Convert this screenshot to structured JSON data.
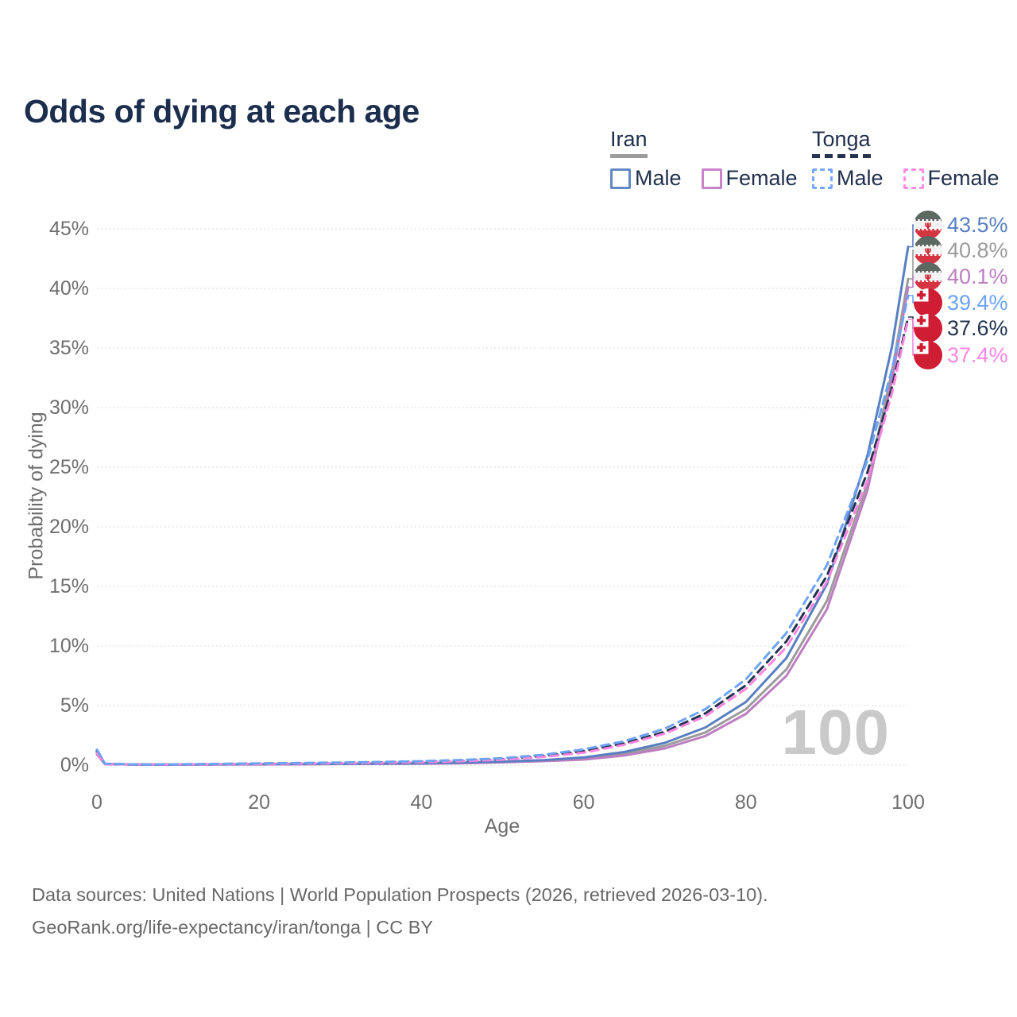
{
  "title": "Odds of dying at each age",
  "legend": {
    "groups": [
      {
        "name": "Iran",
        "line_style": "solid",
        "items": [
          {
            "label": "Male",
            "color": "#6288c6"
          },
          {
            "label": "Female",
            "color": "#c883cb"
          }
        ]
      },
      {
        "name": "Tonga",
        "line_style": "dashed",
        "items": [
          {
            "label": "Male",
            "color": "#74a7f7"
          },
          {
            "label": "Female",
            "color": "#ff8ce3"
          }
        ]
      }
    ]
  },
  "chart_data": {
    "type": "line",
    "title": "Odds of dying at each age",
    "xlabel": "Age",
    "ylabel": "Probability of dying",
    "xlim": [
      0,
      100
    ],
    "ylim": [
      0,
      45
    ],
    "x_ticks": [
      0,
      20,
      40,
      60,
      80,
      100
    ],
    "y_ticks": [
      {
        "value": 45,
        "label": "45%"
      },
      {
        "value": 40,
        "label": "40%"
      },
      {
        "value": 35,
        "label": "35%"
      },
      {
        "value": 30,
        "label": "30%"
      },
      {
        "value": 25,
        "label": "25%"
      },
      {
        "value": 20,
        "label": "20%"
      },
      {
        "value": 15,
        "label": "15%"
      },
      {
        "value": 10,
        "label": "10%"
      },
      {
        "value": 5,
        "label": "5%"
      },
      {
        "value": 0,
        "label": "0%"
      }
    ],
    "grid": "horizontal-dotted",
    "legend_position": "top-right",
    "watermark": "100",
    "ages": [
      0,
      1,
      5,
      10,
      15,
      20,
      25,
      30,
      35,
      40,
      45,
      50,
      55,
      60,
      65,
      70,
      75,
      80,
      85,
      90,
      95,
      98,
      100
    ],
    "series": [
      {
        "name": "Iran Male",
        "country": "Iran",
        "sex": "Male",
        "color": "#587fc1",
        "dash": "solid",
        "flag": "iran",
        "end_value": 43.5,
        "end_label": "43.5%",
        "values": [
          1.2,
          0.1,
          0.05,
          0.05,
          0.07,
          0.09,
          0.1,
          0.11,
          0.13,
          0.16,
          0.21,
          0.3,
          0.42,
          0.65,
          1.1,
          1.87,
          3.16,
          5.3,
          9.0,
          15.2,
          26.0,
          35.1,
          43.5
        ]
      },
      {
        "name": "Iran Both",
        "country": "Iran",
        "sex": "Both",
        "color": "#9b9b9b",
        "dash": "solid",
        "flag": "iran",
        "end_value": 40.8,
        "end_label": "40.8%",
        "values": [
          1.05,
          0.09,
          0.045,
          0.045,
          0.06,
          0.08,
          0.09,
          0.1,
          0.12,
          0.14,
          0.19,
          0.27,
          0.38,
          0.56,
          0.95,
          1.62,
          2.75,
          4.7,
          8.05,
          13.8,
          23.7,
          33.0,
          40.8
        ]
      },
      {
        "name": "Iran Female",
        "country": "Iran",
        "sex": "Female",
        "color": "#bc7ec1",
        "dash": "solid",
        "flag": "iran",
        "end_value": 40.1,
        "end_label": "40.1%",
        "values": [
          0.9,
          0.08,
          0.04,
          0.04,
          0.05,
          0.06,
          0.07,
          0.09,
          0.1,
          0.12,
          0.16,
          0.23,
          0.33,
          0.47,
          0.81,
          1.4,
          2.45,
          4.3,
          7.5,
          13.1,
          23.1,
          32.3,
          40.1
        ]
      },
      {
        "name": "Tonga Male",
        "country": "Tonga",
        "sex": "Male",
        "color": "#6da3f3",
        "dash": "dashed",
        "flag": "tonga",
        "end_value": 39.4,
        "end_label": "39.4%",
        "values": [
          1.3,
          0.12,
          0.06,
          0.07,
          0.1,
          0.15,
          0.18,
          0.22,
          0.27,
          0.33,
          0.43,
          0.58,
          0.87,
          1.32,
          2.01,
          3.06,
          4.7,
          7.2,
          11.1,
          16.8,
          25.6,
          33.2,
          39.4
        ]
      },
      {
        "name": "Tonga Both",
        "country": "Tonga",
        "sex": "Both",
        "color": "#23344f",
        "dash": "dashed",
        "flag": "tonga",
        "end_value": 37.6,
        "end_label": "37.6%",
        "values": [
          1.15,
          0.1,
          0.055,
          0.06,
          0.09,
          0.13,
          0.16,
          0.19,
          0.23,
          0.29,
          0.38,
          0.51,
          0.77,
          1.18,
          1.82,
          2.8,
          4.35,
          6.7,
          10.4,
          15.9,
          24.6,
          31.7,
          37.6
        ]
      },
      {
        "name": "Tonga Female",
        "country": "Tonga",
        "sex": "Female",
        "color": "#fd86e1",
        "dash": "dashed",
        "flag": "tonga",
        "end_value": 37.4,
        "end_label": "37.4%",
        "values": [
          1.0,
          0.09,
          0.05,
          0.055,
          0.08,
          0.11,
          0.13,
          0.16,
          0.2,
          0.25,
          0.33,
          0.46,
          0.68,
          1.05,
          1.71,
          2.65,
          4.1,
          6.4,
          9.9,
          15.4,
          23.9,
          31.2,
          37.4
        ]
      }
    ]
  },
  "footer": {
    "line1": "Data sources: United Nations | World Population Prospects (2026, retrieved 2026-03-10).",
    "line2": "GeoRank.org/life-expectancy/iran/tonga | CC BY"
  }
}
